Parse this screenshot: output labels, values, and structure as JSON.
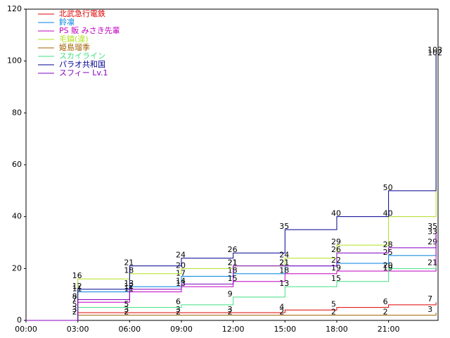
{
  "chart_data": {
    "type": "line",
    "x": [
      0,
      180,
      360,
      540,
      720,
      900,
      1080,
      1260,
      1425
    ],
    "xlim": [
      0,
      1432
    ],
    "xticks": [
      {
        "value": 0,
        "label": "00:00"
      },
      {
        "value": 180,
        "label": "03:00"
      },
      {
        "value": 360,
        "label": "06:00"
      },
      {
        "value": 540,
        "label": "09:00"
      },
      {
        "value": 720,
        "label": "12:00"
      },
      {
        "value": 900,
        "label": "15:00"
      },
      {
        "value": 1080,
        "label": "18:00"
      },
      {
        "value": 1260,
        "label": "21:00"
      }
    ],
    "ylim": [
      0,
      120
    ],
    "yticks": [
      0,
      20,
      40,
      60,
      80,
      100,
      120
    ],
    "legend": "upper-left",
    "series": [
      {
        "name": "北武急行電鉄",
        "color": "#e00000",
        "values": [
          0,
          3,
          3,
          3,
          3,
          4,
          5,
          6,
          7
        ]
      },
      {
        "name": "鈴凛",
        "color": "#0080e0",
        "values": [
          0,
          11,
          13,
          17,
          18,
          21,
          22,
          25,
          29
        ]
      },
      {
        "name": "PS 販 みさき先輩",
        "color": "#c000c0",
        "values": [
          0,
          7,
          11,
          13,
          15,
          18,
          19,
          19,
          35
        ]
      },
      {
        "name": "毛鎮(違)",
        "color": "#b0e020",
        "values": [
          0,
          16,
          18,
          20,
          21,
          24,
          29,
          40,
          102
        ]
      },
      {
        "name": "姫島瑠季",
        "color": "#a06000",
        "values": [
          0,
          2,
          2,
          2,
          2,
          2,
          2,
          2,
          3
        ]
      },
      {
        "name": "スカイライン",
        "color": "#40e080",
        "values": [
          0,
          5,
          5,
          6,
          9,
          13,
          15,
          20,
          21
        ]
      },
      {
        "name": "パラオ共和国",
        "color": "#000090",
        "values": [
          0,
          12,
          21,
          24,
          26,
          35,
          40,
          50,
          103
        ]
      },
      {
        "name": "スフィー Lv.1",
        "color": "#8000c0",
        "values": [
          0,
          8,
          12,
          14,
          21,
          21,
          26,
          28,
          33
        ]
      }
    ]
  }
}
